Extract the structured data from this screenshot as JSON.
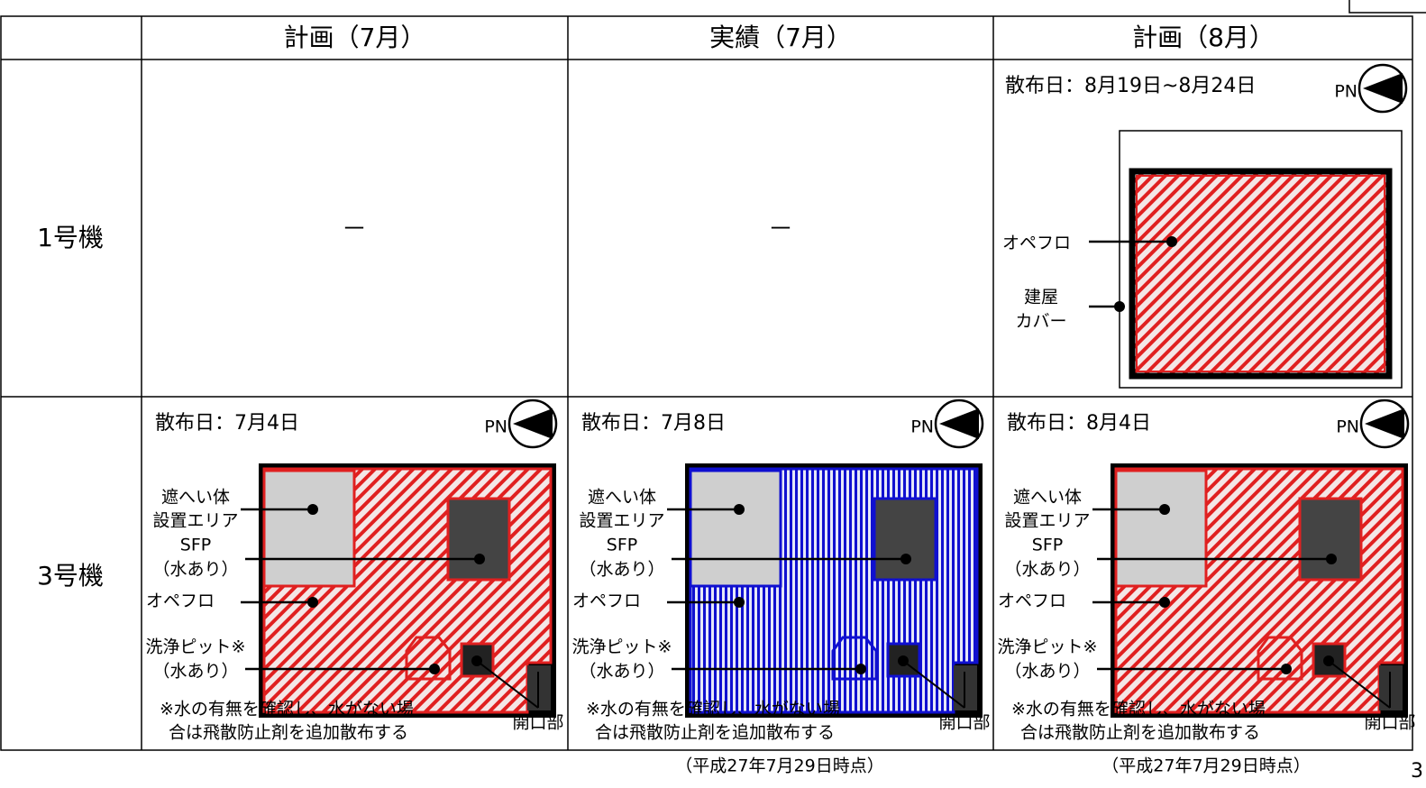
{
  "table": {
    "columns": [
      "計画（7月）",
      "実績（7月）",
      "計画（8月）"
    ],
    "unit1": {
      "label": "1号機",
      "plan_jul": "－",
      "actual_jul": "－",
      "plan_aug": {
        "date": "散布日：8月19日~8月24日",
        "compass": "PN",
        "operating_floor": "オペフロ",
        "cover": [
          "建屋",
          "カバー"
        ]
      }
    },
    "unit3": {
      "label": "3号機",
      "cells": [
        {
          "date": "散布日：7月4日",
          "compass": "PN",
          "shield": [
            "遮へい体",
            "設置エリア"
          ],
          "sfp": [
            "SFP",
            "（水あり）"
          ],
          "operating_floor": "オペフロ",
          "pit": [
            "洗浄ピット※",
            "（水あり）"
          ],
          "note": [
            "※水の有無を確認し、水がない場",
            "合は飛散防止剤を追加散布する"
          ],
          "opening": "開口部"
        },
        {
          "date": "散布日：7月8日",
          "compass": "PN",
          "shield": [
            "遮へい体",
            "設置エリア"
          ],
          "sfp": [
            "SFP",
            "（水あり）"
          ],
          "operating_floor": "オペフロ",
          "pit": [
            "洗浄ピット※",
            "（水あり）"
          ],
          "note": [
            "※水の有無を確認し、水がない場",
            "合は飛散防止剤を追加散布する"
          ],
          "opening": "開口部"
        },
        {
          "date": "散布日：8月4日",
          "compass": "PN",
          "shield": [
            "遮へい体",
            "設置エリア"
          ],
          "sfp": [
            "SFP",
            "（水あり）"
          ],
          "operating_floor": "オペフロ",
          "pit": [
            "洗浄ピット※",
            "（水あり）"
          ],
          "note": [
            "※水の有無を確認し、水がない場",
            "合は飛散防止剤を追加散布する"
          ],
          "opening": "開口部"
        }
      ]
    }
  },
  "footer": {
    "timestamps": [
      "（平成27年7月29日時点）",
      "（平成27年7月29日時点）"
    ],
    "page": "3"
  }
}
